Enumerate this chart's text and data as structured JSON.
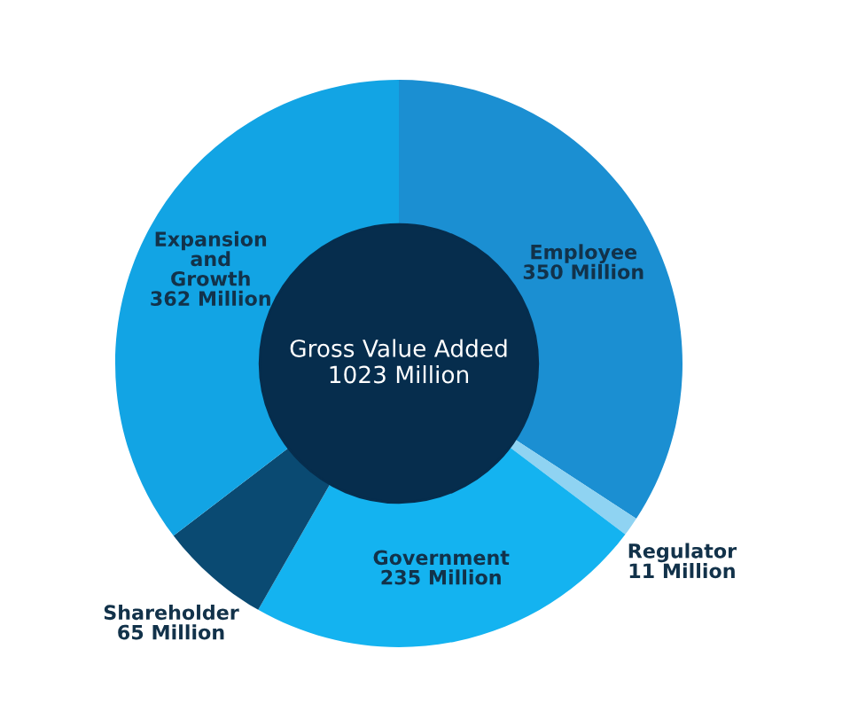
{
  "chart_data": {
    "type": "donut",
    "categories": [
      "Employee",
      "Regulator",
      "Government",
      "Shareholder",
      "Expansion and Growth"
    ],
    "values": [
      350,
      11,
      235,
      65,
      362
    ],
    "value_labels": [
      "350 Million",
      "11 Million",
      "235 Million",
      "65 Million",
      "362 Million"
    ],
    "colors": [
      "#1b8fd2",
      "#8fd3f2",
      "#14b3f0",
      "#0a4a72",
      "#12a4e4"
    ],
    "annotations": [
      "Gross Value Added\n1023 Million"
    ],
    "legend": false
  }
}
